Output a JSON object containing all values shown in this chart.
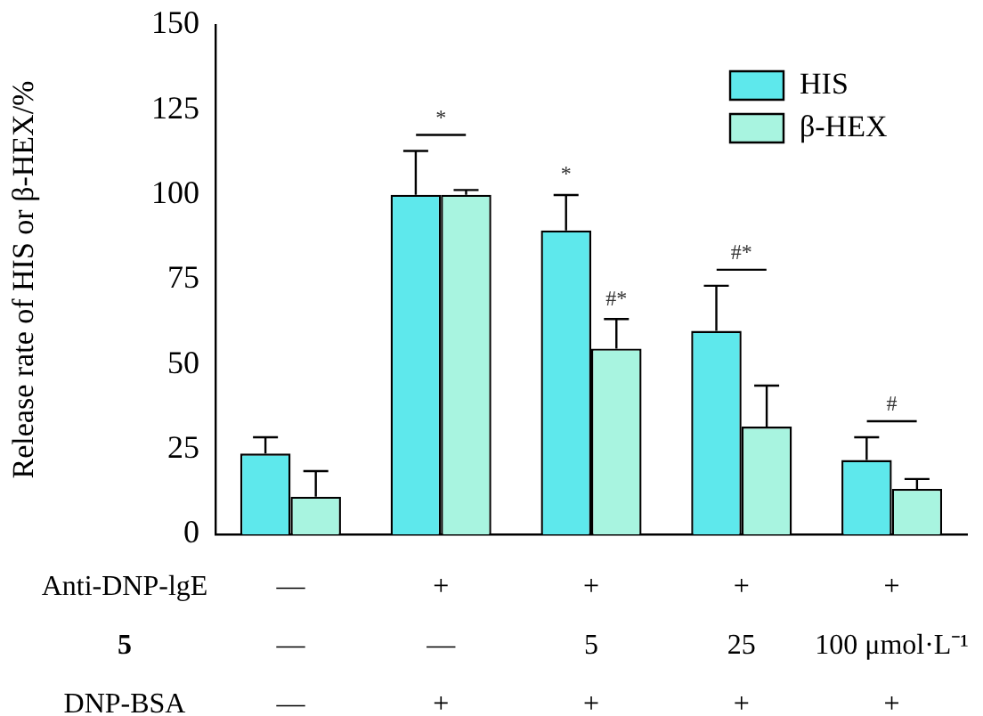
{
  "chart_data": {
    "type": "bar",
    "ylabel": "Release rate of HIS or β-HEX/%",
    "categories": [
      "—\n—\n—",
      "+\n—\n+",
      "+\n5\n+",
      "+\n25\n+",
      "+\n100 μmol·L⁻¹\n+"
    ],
    "series": [
      {
        "name": "HIS",
        "color": "#5ee8ec",
        "values": [
          23.8,
          100,
          89.5,
          59.9,
          21.9
        ],
        "errors": [
          [
            23.8,
            28.6
          ],
          [
            100,
            112.9
          ],
          [
            89.5,
            99.9
          ],
          [
            59.9,
            73.2
          ],
          [
            21.9,
            28.6
          ]
        ]
      },
      {
        "name": "β-HEX",
        "color": "#a8f4e0",
        "values": [
          11.1,
          100,
          54.7,
          31.7,
          13.4
        ],
        "errors": [
          [
            11.1,
            18.6
          ],
          [
            100,
            101.4
          ],
          [
            54.7,
            63.4
          ],
          [
            31.7,
            43.8
          ],
          [
            13.4,
            16.3
          ]
        ]
      }
    ],
    "ylim": [
      0,
      150
    ],
    "yticks": [
      0,
      25,
      50,
      75,
      100,
      125,
      150
    ],
    "grid": false,
    "legend": "top right",
    "annotations": [
      "Anti-DNP-lgE",
      "5",
      "DNP-BSA",
      "*",
      "*",
      "#*",
      "#*",
      "#"
    ]
  }
}
